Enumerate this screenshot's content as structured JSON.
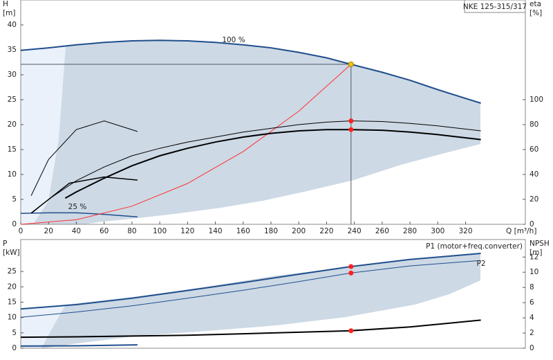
{
  "chart_data": [
    {
      "type": "line",
      "title": "NKE 125-315/317",
      "xlabel": "Q [m³/h]",
      "ylabel": [
        "H",
        "[m]"
      ],
      "y2label": [
        "eta",
        "[%]"
      ],
      "xlim": [
        0,
        363
      ],
      "xticks": [
        0,
        20,
        40,
        60,
        80,
        100,
        120,
        140,
        160,
        180,
        200,
        220,
        240,
        260,
        280,
        300,
        320
      ],
      "ylim": [
        0,
        45
      ],
      "yticks": [
        0,
        5,
        10,
        15,
        20,
        25,
        30,
        35,
        40
      ],
      "y2lim": [
        0,
        180
      ],
      "y2ticks": [
        0,
        20,
        40,
        60,
        80,
        100
      ],
      "series": [
        {
          "name": "100 %",
          "color": "#1f4e8c",
          "linewidth": 2,
          "x": [
            0,
            20,
            40,
            60,
            80,
            100,
            120,
            140,
            160,
            180,
            200,
            220,
            237.6,
            260,
            280,
            300,
            331
          ],
          "values": [
            34.9,
            35.4,
            36.0,
            36.5,
            36.8,
            36.9,
            36.8,
            36.5,
            36.0,
            35.4,
            34.5,
            33.4,
            32.1,
            30.5,
            28.9,
            27.0,
            24.3
          ]
        },
        {
          "name": "25 %",
          "color": "#1f4e8c",
          "linewidth": 1.5,
          "x": [
            0,
            20,
            40,
            60,
            84
          ],
          "values": [
            2.2,
            2.3,
            2.3,
            2.0,
            1.5
          ]
        },
        {
          "color": "#ff3030",
          "linewidth": 1,
          "x": [
            0,
            40,
            80,
            120,
            160,
            200,
            237.6
          ],
          "values": [
            0,
            0.91,
            3.64,
            8.19,
            14.6,
            22.7,
            32.1
          ]
        },
        {
          "color": "#000000",
          "linewidth": 1,
          "axis": "y2",
          "x": [
            8,
            20,
            40,
            60,
            80,
            100,
            120,
            140,
            160,
            180,
            200,
            220,
            237.6,
            260,
            280,
            300,
            331
          ],
          "values": [
            9,
            20,
            35,
            46,
            55,
            61,
            66,
            70,
            74,
            77,
            80,
            82,
            83,
            82.5,
            81,
            79,
            75
          ]
        },
        {
          "color": "#000000",
          "linewidth": 2,
          "axis": "y2",
          "x": [
            32,
            40,
            60,
            80,
            100,
            120,
            140,
            160,
            180,
            200,
            220,
            237.6,
            260,
            280,
            300,
            331
          ],
          "values": [
            21,
            26,
            37,
            47,
            55,
            61,
            66,
            70,
            73,
            75,
            76,
            76,
            75.5,
            74,
            72,
            68
          ]
        },
        {
          "color": "#000000",
          "linewidth": 1,
          "axis": "y2",
          "x": [
            7.5,
            20,
            40,
            60,
            84
          ],
          "values": [
            23,
            52,
            76,
            83,
            74.5
          ]
        },
        {
          "color": "#000000",
          "linewidth": 1.5,
          "axis": "y2",
          "x": [
            7.5,
            35,
            60,
            84
          ],
          "values": [
            9,
            33,
            38,
            35.5
          ]
        }
      ],
      "markers": [
        {
          "x": 237.6,
          "value": 32.1,
          "color": "#f5c400"
        },
        {
          "x": 237.6,
          "value": 83,
          "axis": "y2",
          "color": "#ff2020"
        },
        {
          "x": 237.6,
          "value": 76,
          "axis": "y2",
          "color": "#ff2020"
        }
      ]
    },
    {
      "type": "line",
      "ylabel": [
        "P",
        "[kW]"
      ],
      "y2label": [
        "NPSH",
        "[m]"
      ],
      "xlim": [
        0,
        363
      ],
      "ylim": [
        0,
        35.4
      ],
      "yticks": [
        0,
        5,
        10,
        15,
        20,
        25
      ],
      "y2lim": [
        0,
        14.3
      ],
      "y2ticks": [
        0,
        2,
        4,
        6,
        8,
        10,
        12
      ],
      "series": [
        {
          "name": "P1 (motor+freq.converter)",
          "color": "#1f4e8c",
          "linewidth": 2,
          "x": [
            0,
            40,
            80,
            120,
            160,
            200,
            237.6,
            280,
            331
          ],
          "values": [
            12.8,
            14.2,
            16.3,
            18.8,
            21.4,
            24.1,
            26.6,
            28.9,
            30.9
          ]
        },
        {
          "name": "P2",
          "color": "#1f4e8c",
          "linewidth": 1,
          "x": [
            0,
            40,
            80,
            120,
            160,
            200,
            237.6,
            280,
            331
          ],
          "values": [
            10.1,
            11.8,
            13.8,
            16.3,
            18.9,
            21.7,
            24.5,
            26.8,
            28.6
          ]
        },
        {
          "color": "#000000",
          "linewidth": 2,
          "axis": "y2",
          "x": [
            0,
            40,
            80,
            120,
            160,
            200,
            237.6,
            280,
            331
          ],
          "values": [
            1.45,
            1.5,
            1.6,
            1.7,
            1.9,
            2.1,
            2.3,
            2.8,
            3.7
          ]
        },
        {
          "color": "#1f4e8c",
          "linewidth": 2,
          "x": [
            0,
            40,
            84
          ],
          "values": [
            0.7,
            0.8,
            1.1
          ]
        }
      ],
      "markers": [
        {
          "x": 237.6,
          "value": 26.6,
          "color": "#ff2020"
        },
        {
          "x": 237.6,
          "value": 24.5,
          "color": "#ff2020"
        },
        {
          "x": 237.6,
          "value": 2.3,
          "axis": "y2",
          "color": "#ff2020"
        }
      ]
    }
  ]
}
